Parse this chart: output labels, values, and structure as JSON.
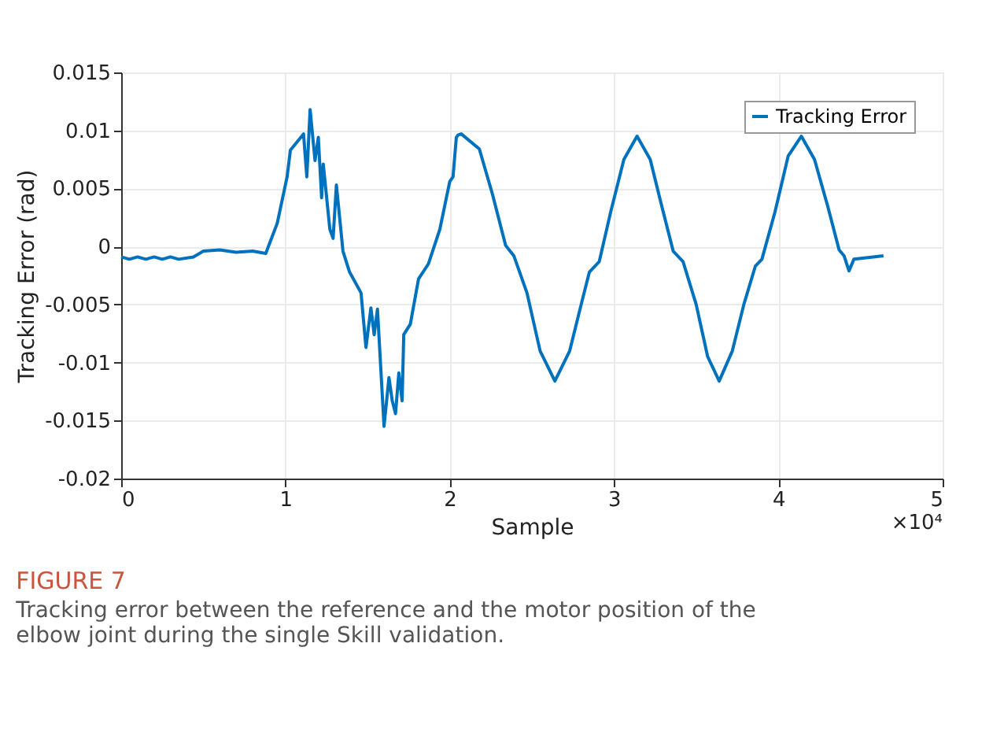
{
  "chart_data": {
    "type": "line",
    "xlabel": "Sample",
    "ylabel": "Tracking Error (rad)",
    "xlim": [
      0,
      5
    ],
    "xticks": [
      0,
      1,
      2,
      3,
      4,
      5
    ],
    "ylim": [
      -0.02,
      0.015
    ],
    "yticks": [
      -0.02,
      -0.015,
      -0.01,
      -0.005,
      0,
      0.005,
      0.01,
      0.015
    ],
    "grid": true,
    "legend": "top right",
    "line_style": "solid",
    "marker": "none",
    "series": [
      {
        "name": "Tracking Error",
        "color": "#0072bd",
        "x": [
          0,
          0.05,
          0.1,
          0.15,
          0.2,
          0.25,
          0.3,
          0.35,
          0.44,
          0.5,
          0.6,
          0.7,
          0.8,
          0.88,
          0.95,
          1.01,
          1.03,
          1.11,
          1.13,
          1.15,
          1.18,
          1.2,
          1.22,
          1.23,
          1.27,
          1.29,
          1.31,
          1.35,
          1.39,
          1.46,
          1.49,
          1.52,
          1.54,
          1.56,
          1.6,
          1.63,
          1.65,
          1.67,
          1.69,
          1.71,
          1.72,
          1.76,
          1.81,
          1.87,
          1.94,
          2.0,
          2.02,
          2.04,
          2.05,
          2.07,
          2.18,
          2.26,
          2.34,
          2.39,
          2.47,
          2.55,
          2.64,
          2.73,
          2.8,
          2.85,
          2.91,
          2.98,
          3.06,
          3.14,
          3.22,
          3.29,
          3.36,
          3.42,
          3.5,
          3.57,
          3.64,
          3.72,
          3.79,
          3.86,
          3.9,
          3.98,
          4.06,
          4.14,
          4.22,
          4.3,
          4.37,
          4.4,
          4.43,
          4.46,
          4.64
        ],
        "values": [
          -0.0009,
          -0.0011,
          -0.0009,
          -0.0011,
          -0.0009,
          -0.0011,
          -0.0009,
          -0.0011,
          -0.0009,
          -0.0004,
          -0.0003,
          -0.0005,
          -0.0004,
          -0.0006,
          0.002,
          0.006,
          0.0083,
          0.0097,
          0.006,
          0.0118,
          0.0074,
          0.0094,
          0.0042,
          0.0071,
          0.0015,
          0.0007,
          0.0053,
          -0.0004,
          -0.0022,
          -0.004,
          -0.0087,
          -0.0053,
          -0.0076,
          -0.0054,
          -0.0155,
          -0.0113,
          -0.0133,
          -0.0144,
          -0.0109,
          -0.0133,
          -0.0076,
          -0.0067,
          -0.0028,
          -0.0015,
          0.0015,
          0.0056,
          0.006,
          0.0094,
          0.0096,
          0.0097,
          0.0084,
          0.0045,
          0.0001,
          -0.0008,
          -0.004,
          -0.009,
          -0.0116,
          -0.009,
          -0.005,
          -0.0022,
          -0.0013,
          0.003,
          0.0075,
          0.0095,
          0.0075,
          0.0035,
          -0.0004,
          -0.0013,
          -0.005,
          -0.0095,
          -0.0116,
          -0.009,
          -0.005,
          -0.0017,
          -0.0011,
          0.003,
          0.0078,
          0.0095,
          0.0075,
          0.0035,
          -0.0003,
          -0.0008,
          -0.0021,
          -0.0011,
          -0.0008
        ]
      }
    ],
    "annotations": [
      "×10⁴",
      "FIGURE 7",
      "Tracking error between the reference and the motor position of the elbow joint during the single Skill validation."
    ]
  }
}
